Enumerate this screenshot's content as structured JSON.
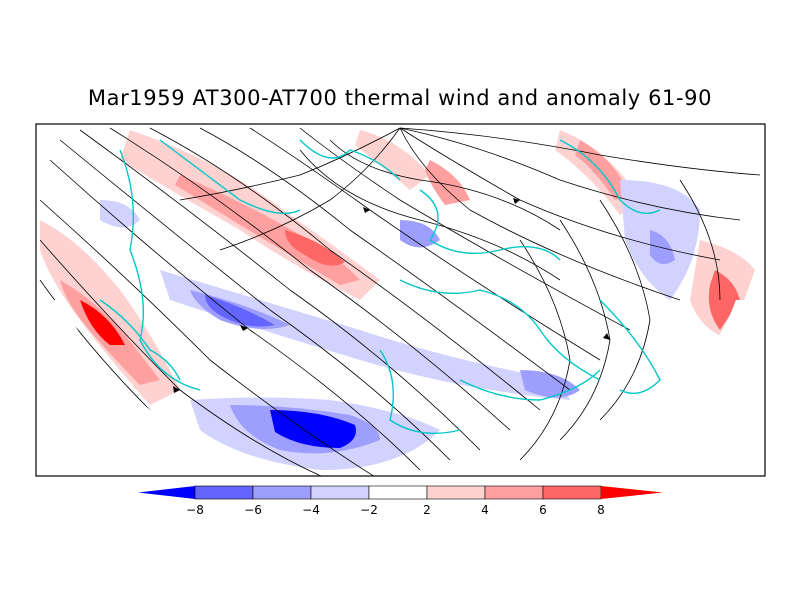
{
  "title": "Mar1959 AT300-AT700 thermal wind and anomaly 61-90",
  "colorbar": {
    "colors": [
      "#0000ff",
      "#6464ff",
      "#9e9eff",
      "#d2d2ff",
      "#ffffff",
      "#ffd2d2",
      "#ffa0a0",
      "#ff6666",
      "#ff0000"
    ],
    "ticks": [
      "-8",
      "-6",
      "-4",
      "-2",
      "2",
      "4",
      "6",
      "8"
    ]
  },
  "colors": {
    "coastline": "#00c8c8",
    "streamline": "#000000",
    "frame": "#000000"
  }
}
